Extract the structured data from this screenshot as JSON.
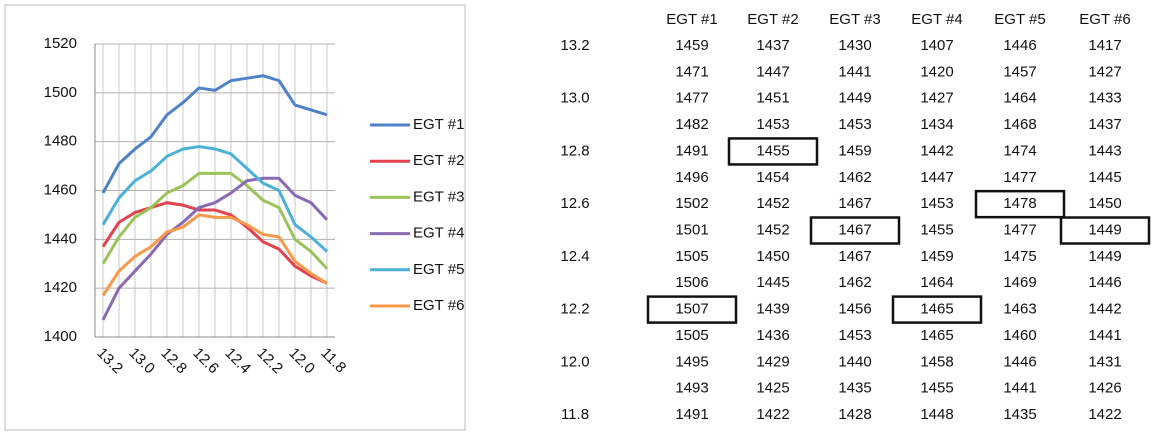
{
  "chart_data": {
    "type": "line",
    "categories": [
      "13.2",
      null,
      "13.0",
      null,
      "12.8",
      null,
      "12.6",
      null,
      "12.4",
      null,
      "12.2",
      null,
      "12.0",
      null,
      "11.8"
    ],
    "series": [
      {
        "name": "EGT #1",
        "color": "#4f81c9",
        "values": [
          1459,
          1471,
          1477,
          1482,
          1491,
          1496,
          1502,
          1501,
          1505,
          1506,
          1507,
          1505,
          1495,
          1493,
          1491
        ]
      },
      {
        "name": "EGT #2",
        "color": "#e2434f",
        "values": [
          1437,
          1447,
          1451,
          1453,
          1455,
          1454,
          1452,
          1452,
          1450,
          1445,
          1439,
          1436,
          1429,
          1425,
          1422
        ]
      },
      {
        "name": "EGT #3",
        "color": "#9bc35a",
        "values": [
          1430,
          1441,
          1449,
          1453,
          1459,
          1462,
          1467,
          1467,
          1467,
          1462,
          1456,
          1453,
          1440,
          1435,
          1428
        ]
      },
      {
        "name": "EGT #4",
        "color": "#8a6bb3",
        "values": [
          1407,
          1420,
          1427,
          1434,
          1442,
          1447,
          1453,
          1455,
          1459,
          1464,
          1465,
          1465,
          1458,
          1455,
          1448
        ]
      },
      {
        "name": "EGT #5",
        "color": "#4cb1d8",
        "values": [
          1446,
          1457,
          1464,
          1468,
          1474,
          1477,
          1478,
          1477,
          1475,
          1469,
          1463,
          1460,
          1446,
          1441,
          1435
        ]
      },
      {
        "name": "EGT #6",
        "color": "#f7994a",
        "values": [
          1417,
          1427,
          1433,
          1437,
          1443,
          1445,
          1450,
          1449,
          1449,
          1446,
          1442,
          1441,
          1431,
          1426,
          1422
        ]
      }
    ],
    "ylim": [
      1400,
      1520
    ],
    "yticks": [
      1400,
      1420,
      1440,
      1460,
      1480,
      1500,
      1520
    ],
    "grid": true,
    "legend": "right"
  },
  "table": {
    "boxed_cells": [
      {
        "row": 10,
        "col": 0
      },
      {
        "row": 4,
        "col": 1
      },
      {
        "row": 7,
        "col": 2
      },
      {
        "row": 10,
        "col": 3
      },
      {
        "row": 6,
        "col": 4
      },
      {
        "row": 7,
        "col": 5
      }
    ]
  }
}
